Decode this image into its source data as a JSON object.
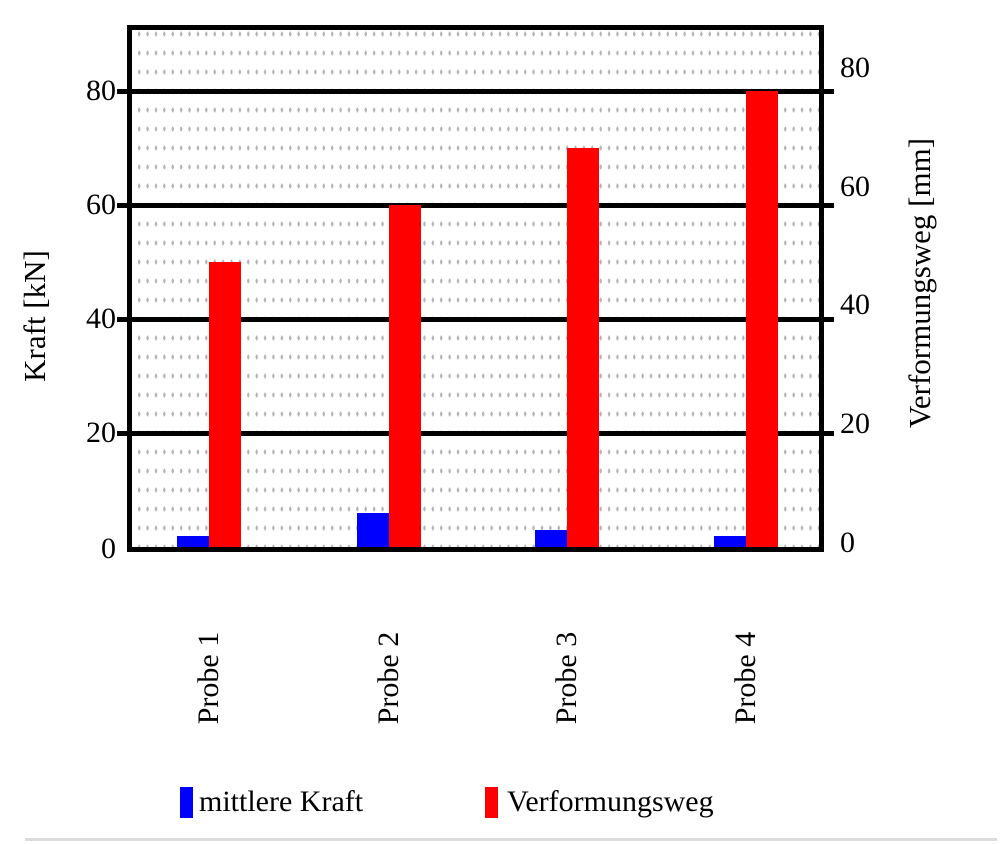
{
  "chart_data": {
    "type": "bar",
    "categories": [
      "Probe 1",
      "Probe 2",
      "Probe 3",
      "Probe 4"
    ],
    "series": [
      {
        "name": "mittlere Kraft",
        "axis": "left",
        "unit": "kN",
        "color": "#0000ff",
        "values": [
          2,
          6,
          3,
          2
        ]
      },
      {
        "name": "Verformungsweg",
        "axis": "right",
        "unit": "mm",
        "color": "#ff0000",
        "values": [
          50,
          60,
          70,
          80
        ]
      }
    ],
    "left_axis": {
      "label": "Kraft [kN]",
      "ticks": [
        "0",
        "20",
        "40",
        "60",
        "80"
      ],
      "ylim": [
        0,
        91
      ]
    },
    "right_axis": {
      "label": "Verformungsweg [mm]",
      "ticks": [
        "0",
        "20",
        "40",
        "60",
        "80"
      ],
      "ylim": [
        0,
        87
      ]
    },
    "grid": {
      "major": "solid-black-horizontal",
      "minor": "dotted-gray-lattice"
    },
    "legend_position": "bottom"
  },
  "legend": {
    "items": [
      {
        "label": "mittlere Kraft",
        "color": "#0000ff"
      },
      {
        "label": "Verformungsweg",
        "color": "#ff0000"
      }
    ]
  }
}
